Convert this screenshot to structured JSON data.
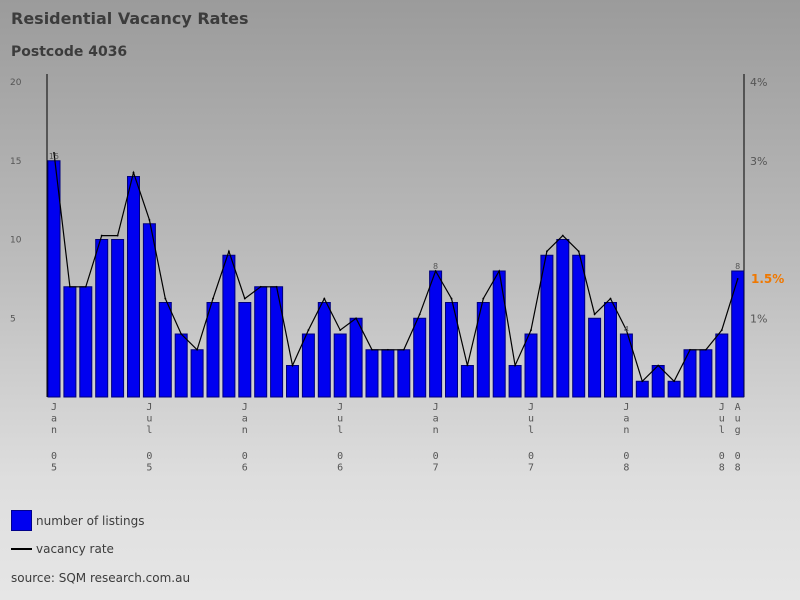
{
  "chart_data": {
    "type": "bar",
    "title": "Residential Vacancy Rates",
    "subtitle": "Postcode 4036",
    "source": "source: SQM research.com.au",
    "left_axis": {
      "ylim": [
        0,
        20
      ],
      "ticks": [
        5,
        10,
        15,
        20
      ]
    },
    "right_axis": {
      "ylim": [
        0,
        4
      ],
      "ticks": [
        {
          "label": "1%",
          "value": 1
        },
        {
          "label": "3%",
          "value": 3
        },
        {
          "label": "4%",
          "value": 4
        }
      ]
    },
    "current_rate_label": "1.5%",
    "current_rate_value": 1.5,
    "series": [
      {
        "name": "number of listings",
        "color": "#0000f0",
        "values": [
          15,
          7,
          7,
          10,
          10,
          14,
          11,
          6,
          4,
          3,
          6,
          9,
          6,
          7,
          7,
          2,
          4,
          6,
          4,
          5,
          3,
          3,
          3,
          5,
          8,
          6,
          2,
          6,
          8,
          2,
          4,
          9,
          10,
          9,
          5,
          6,
          4,
          1,
          2,
          1,
          3,
          3,
          4,
          8
        ]
      },
      {
        "name": "vacancy rate",
        "color": "#000000",
        "values": [
          3.1,
          1.4,
          1.4,
          2.05,
          2.05,
          2.85,
          2.25,
          1.25,
          0.8,
          0.6,
          1.25,
          1.85,
          1.25,
          1.4,
          1.4,
          0.4,
          0.85,
          1.25,
          0.85,
          1.0,
          0.6,
          0.6,
          0.6,
          1.05,
          1.6,
          1.25,
          0.4,
          1.25,
          1.6,
          0.4,
          0.85,
          1.85,
          2.05,
          1.85,
          1.05,
          1.25,
          0.85,
          0.2,
          0.4,
          0.2,
          0.6,
          0.6,
          0.85,
          1.5
        ]
      }
    ],
    "data_labels": [
      {
        "index": 0,
        "label": "15"
      },
      {
        "index": 24,
        "label": "8"
      },
      {
        "index": 36,
        "label": "4"
      },
      {
        "index": 43,
        "label": "8"
      }
    ],
    "x_ticks": [
      {
        "index": 0,
        "label": "Jan 05"
      },
      {
        "index": 6,
        "label": "Jul 05"
      },
      {
        "index": 12,
        "label": "Jan 06"
      },
      {
        "index": 18,
        "label": "Jul 06"
      },
      {
        "index": 24,
        "label": "Jan 07"
      },
      {
        "index": 30,
        "label": "Jul 07"
      },
      {
        "index": 36,
        "label": "Jan 08"
      },
      {
        "index": 42,
        "label": "Jul 08"
      },
      {
        "index": 43,
        "label": "Aug 08"
      }
    ]
  },
  "legend": {
    "bars_label": "number of listings",
    "line_label": "vacancy rate"
  }
}
